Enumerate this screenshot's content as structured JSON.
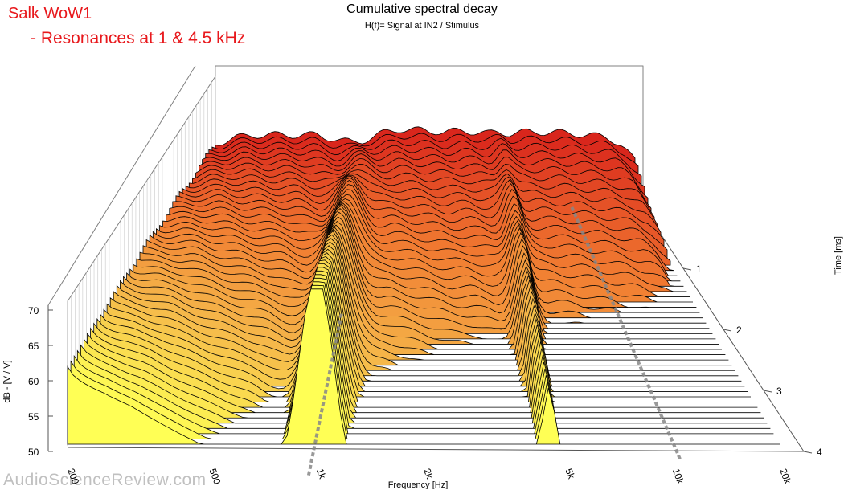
{
  "annotation": {
    "title": "Salk WoW1",
    "subtitle": "- Resonances at 1 & 4.5 kHz"
  },
  "watermark": "AudioScienceReview.com",
  "chart_data": {
    "type": "waterfall",
    "title": "Cumulative spectral decay",
    "subtitle": "H(f)= Signal at IN2 / Stimulus",
    "xlabel": "Frequency [Hz]",
    "ylabel": "dB - [V / V]",
    "zlabel": "Time [ms]",
    "x_scale": "log",
    "x_ticks": [
      {
        "value": 200,
        "label": "200"
      },
      {
        "value": 500,
        "label": "500"
      },
      {
        "value": 1000,
        "label": "1k"
      },
      {
        "value": 2000,
        "label": "2k"
      },
      {
        "value": 5000,
        "label": "5k"
      },
      {
        "value": 10000,
        "label": "10k"
      },
      {
        "value": 20000,
        "label": "20k"
      }
    ],
    "xlim": [
      200,
      20000
    ],
    "y_ticks": [
      50,
      55,
      60,
      65,
      70
    ],
    "ylim": [
      50,
      70
    ],
    "z_ticks": [
      1,
      2,
      3,
      4
    ],
    "zlim": [
      0,
      4
    ],
    "slices": 46,
    "envelope": {
      "freq_hz": [
        200,
        250,
        300,
        400,
        500,
        600,
        700,
        800,
        900,
        1000,
        1100,
        1300,
        1500,
        2000,
        2500,
        3000,
        3500,
        4000,
        4500,
        5000,
        6000,
        7000,
        8000,
        10000,
        12000,
        15000,
        17000,
        20000
      ],
      "initial_db": [
        72,
        74,
        75,
        75,
        75,
        75,
        74,
        73,
        72.5,
        73,
        74,
        76,
        77,
        76.5,
        76,
        76.5,
        76,
        75.5,
        76,
        75.5,
        76,
        76,
        76,
        75.5,
        75,
        74,
        72,
        66
      ]
    },
    "resonances": [
      {
        "freq_hz": 1000,
        "label": "1 kHz"
      },
      {
        "freq_hz": 4500,
        "label": "4.5 kHz"
      }
    ],
    "colormap": [
      "#d9261c",
      "#f07830",
      "#f5b84a",
      "#ffff55"
    ]
  }
}
